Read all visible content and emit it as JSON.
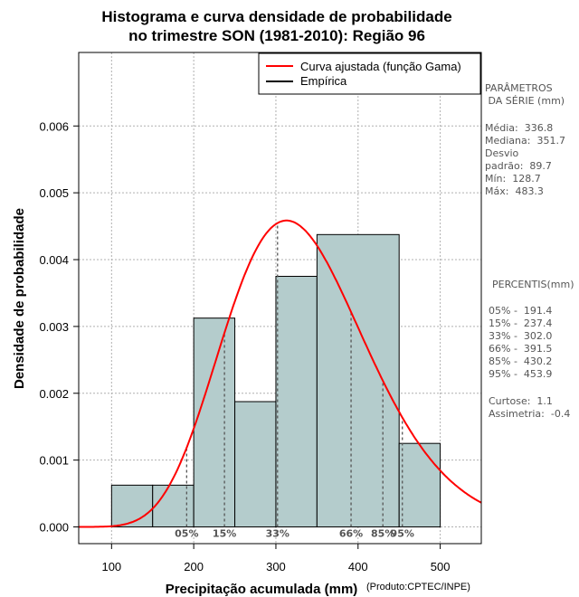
{
  "chart_data": {
    "type": "histogram",
    "title_line1": "Histograma e curva densidade de probabilidade",
    "title_line2": "no trimestre SON (1981-2010): Região 96",
    "xlabel": "Precipitação acumulada (mm)",
    "ylabel": "Densidade de probabilidade",
    "credit": "(Produto:CPTEC/INPE)",
    "xlim": [
      60,
      550
    ],
    "ylim": [
      -0.00025,
      0.0071
    ],
    "x_ticks": [
      100,
      200,
      300,
      400,
      500
    ],
    "x_tick_labels": [
      "100",
      "200",
      "300",
      "400",
      "500"
    ],
    "y_ticks": [
      0.0,
      0.001,
      0.002,
      0.003,
      0.004,
      0.005,
      0.006
    ],
    "y_tick_labels": [
      "0.000",
      "0.001",
      "0.002",
      "0.003",
      "0.004",
      "0.005",
      "0.006"
    ],
    "grid": true,
    "bins": [
      {
        "x0": 100,
        "x1": 150,
        "density": 0.000625
      },
      {
        "x0": 150,
        "x1": 200,
        "density": 0.000625
      },
      {
        "x0": 200,
        "x1": 250,
        "density": 0.003125
      },
      {
        "x0": 250,
        "x1": 300,
        "density": 0.001875
      },
      {
        "x0": 300,
        "x1": 350,
        "density": 0.00375
      },
      {
        "x0": 350,
        "x1": 450,
        "density": 0.004375
      },
      {
        "x0": 450,
        "x1": 500,
        "density": 0.00125
      }
    ],
    "bar_color": "#b4cccc",
    "curve": {
      "name": "Curva ajustada (função Gama)",
      "color": "#ff0000",
      "mean": 336.8,
      "sd": 89.7
    },
    "empirical": {
      "name": "Empírica",
      "color": "#000000"
    },
    "legend_position": "top-right",
    "percentiles": [
      {
        "label": "05%",
        "value": 191.4
      },
      {
        "label": "15%",
        "value": 237.4
      },
      {
        "label": "33%",
        "value": 302.0
      },
      {
        "label": "66%",
        "value": 391.5
      },
      {
        "label": "85%",
        "value": 430.2
      },
      {
        "label": "95%",
        "value": 453.9
      }
    ]
  },
  "side_panel": {
    "params_title_1": "PARÂMETROS",
    "params_title_2": " DA SÉRIE (mm)",
    "media": "Média:  336.8",
    "mediana": "Mediana:  351.7",
    "desvio_1": "Desvio",
    "desvio_2": "padrão:  89.7",
    "min": "Mín:  128.7",
    "max": "Máx:  483.3",
    "percentis_title": "PERCENTIS(mm)",
    "p05": "05% -  191.4",
    "p15": "15% -  237.4",
    "p33": "33% -  302.0",
    "p66": "66% -  391.5",
    "p85": "85% -  430.2",
    "p95": "95% -  453.9",
    "curtose": "Curtose:  1.1",
    "assimetria": "Assimetria:  -0.4"
  }
}
